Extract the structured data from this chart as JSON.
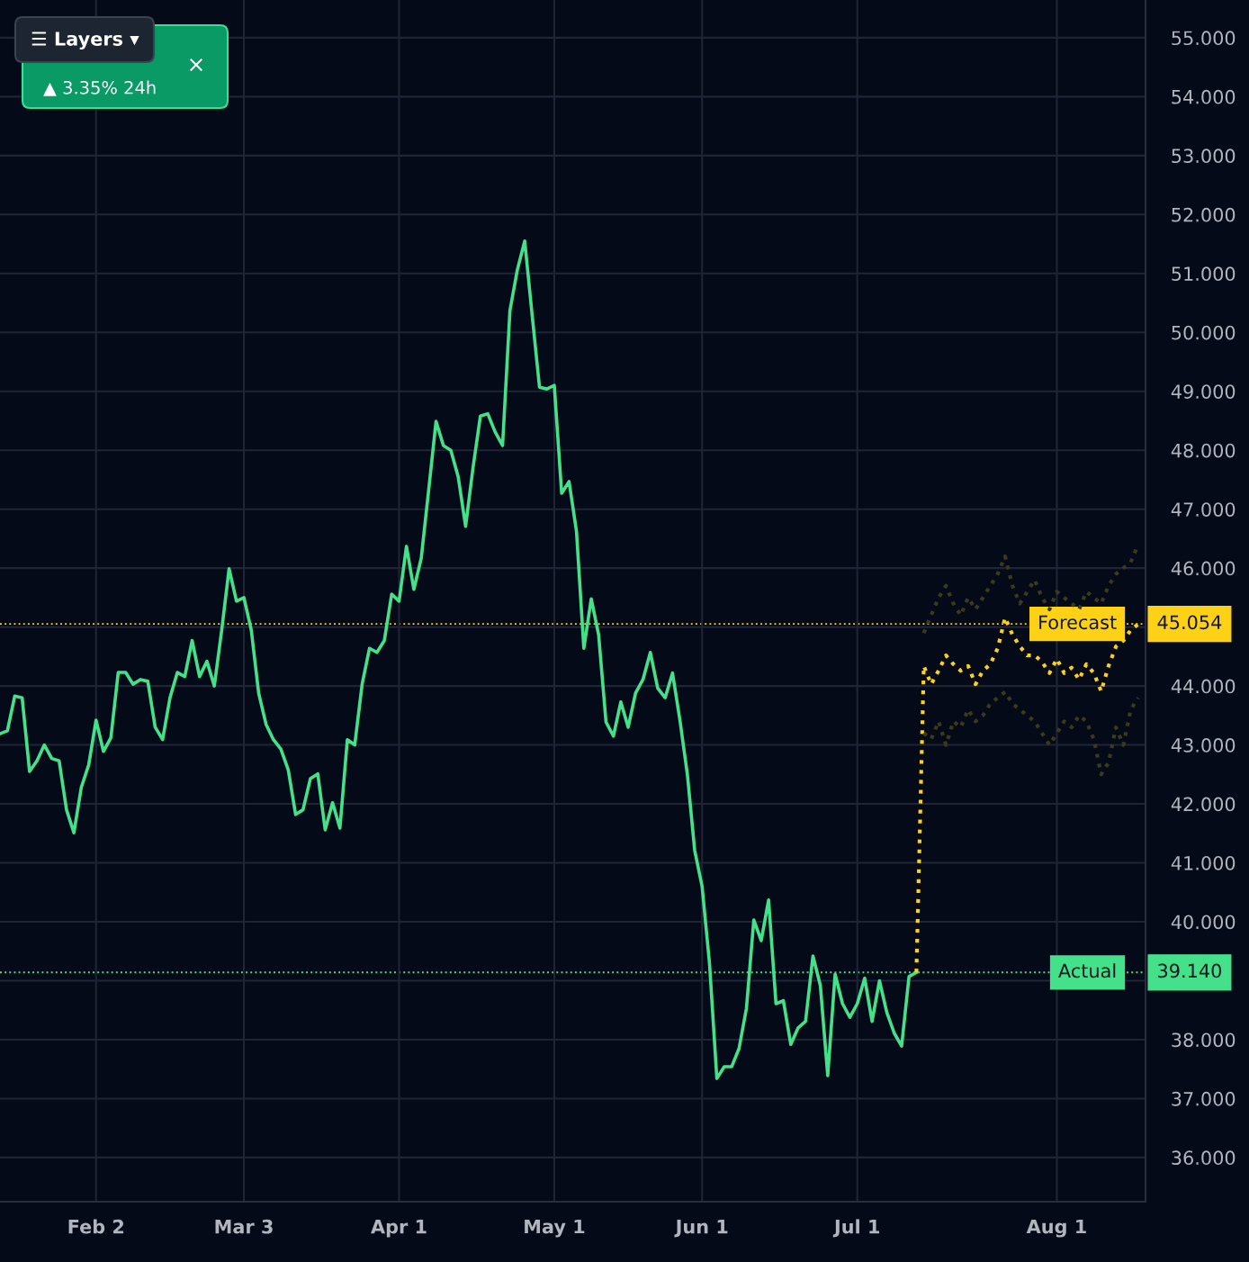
{
  "chart_data": {
    "type": "line",
    "categories": [
      null,
      null,
      null,
      null,
      null,
      null,
      null,
      null,
      null,
      null,
      null,
      null,
      null,
      "Feb 2",
      null,
      null,
      null,
      null,
      null,
      null,
      null,
      null,
      null,
      null,
      null,
      null,
      null,
      null,
      null,
      null,
      null,
      null,
      null,
      "Mar 3",
      null,
      null,
      null,
      null,
      null,
      null,
      null,
      null,
      null,
      null,
      null,
      null,
      null,
      null,
      null,
      null,
      null,
      null,
      null,
      null,
      "Apr 1",
      null,
      null,
      null,
      null,
      null,
      null,
      null,
      null,
      null,
      null,
      null,
      null,
      null,
      null,
      null,
      null,
      null,
      null,
      null,
      null,
      "May 1",
      null,
      null,
      null,
      null,
      null,
      null,
      null,
      null,
      null,
      null,
      null,
      null,
      null,
      null,
      null,
      null,
      null,
      null,
      null,
      "Jun 1",
      null,
      null,
      null,
      null,
      null,
      null,
      null,
      null,
      null,
      null,
      null,
      null,
      null,
      null,
      null,
      null,
      null,
      null,
      null,
      null,
      "Jul 1",
      null,
      null,
      null,
      null,
      null,
      null,
      null,
      null,
      null,
      null,
      null,
      null,
      null,
      null,
      null,
      null,
      null,
      null,
      null,
      null,
      null,
      null,
      null,
      null,
      null,
      null,
      "Aug 1",
      null,
      null,
      null,
      null,
      null,
      null,
      null,
      null,
      null,
      null,
      null
    ],
    "ylim": [
      35.25,
      55.64
    ],
    "yticks": [
      {
        "value": 36,
        "label": "36.000"
      },
      {
        "value": 37,
        "label": "37.000"
      },
      {
        "value": 38,
        "label": "38.000"
      },
      {
        "value": 39,
        "label": null
      },
      {
        "value": 40,
        "label": "40.000"
      },
      {
        "value": 41,
        "label": "41.000"
      },
      {
        "value": 42,
        "label": "42.000"
      },
      {
        "value": 43,
        "label": "43.000"
      },
      {
        "value": 44,
        "label": "44.000"
      },
      {
        "value": 45,
        "label": null
      },
      {
        "value": 46,
        "label": "46.000"
      },
      {
        "value": 47,
        "label": "47.000"
      },
      {
        "value": 48,
        "label": "48.000"
      },
      {
        "value": 49,
        "label": "49.000"
      },
      {
        "value": 50,
        "label": "50.000"
      },
      {
        "value": 51,
        "label": "51.000"
      },
      {
        "value": 52,
        "label": "52.000"
      },
      {
        "value": 53,
        "label": "53.000"
      },
      {
        "value": 54,
        "label": "54.000"
      },
      {
        "value": 55,
        "label": "55.000"
      }
    ],
    "grid": true,
    "marker": "none",
    "series": [
      {
        "color": "#45e08a",
        "line_style": "solid",
        "values": [
          43.19,
          43.24,
          43.83,
          43.8,
          42.55,
          42.73,
          43.0,
          42.77,
          42.73,
          41.9,
          41.51,
          42.28,
          42.66,
          43.42,
          42.89,
          43.12,
          44.23,
          44.23,
          44.03,
          44.11,
          44.08,
          43.3,
          43.09,
          43.8,
          44.23,
          44.16,
          44.77,
          44.16,
          44.42,
          44.0,
          44.95,
          45.99,
          45.44,
          45.5,
          44.95,
          43.88,
          43.35,
          43.09,
          42.93,
          42.58,
          41.82,
          41.9,
          42.43,
          42.51,
          41.56,
          42.02,
          41.59,
          43.09,
          43.0,
          44.03,
          44.64,
          44.57,
          44.77,
          45.56,
          45.44,
          46.37,
          45.64,
          46.17,
          47.32,
          48.49,
          48.08,
          48.0,
          47.55,
          46.71,
          47.7,
          48.58,
          48.62,
          48.31,
          48.08,
          50.37,
          51.06,
          51.55,
          50.3,
          49.07,
          49.04,
          49.1,
          47.27,
          47.47,
          46.63,
          44.64,
          45.48,
          44.87,
          43.39,
          43.15,
          43.73,
          43.3,
          43.88,
          44.11,
          44.57,
          43.96,
          43.8,
          44.22,
          43.42,
          42.51,
          41.21,
          40.6,
          39.3,
          37.34,
          37.54,
          37.54,
          37.85,
          38.53,
          40.03,
          39.68,
          40.37,
          38.61,
          38.66,
          37.92,
          38.2,
          38.31,
          39.42,
          38.92,
          37.39,
          39.11,
          38.61,
          38.38,
          38.61,
          39.04,
          38.31,
          39.0,
          38.46,
          38.11,
          37.89,
          39.07,
          39.14,
          null,
          null,
          null,
          null,
          null,
          null,
          null,
          null,
          null,
          null,
          null,
          null,
          null,
          null,
          null,
          null,
          null,
          null,
          null,
          null,
          null,
          null,
          null,
          null,
          null,
          null,
          null,
          null,
          null,
          null
        ]
      },
      {
        "color": "#fcd116",
        "line_style": "dotted",
        "values": [
          null,
          null,
          null,
          null,
          null,
          null,
          null,
          null,
          null,
          null,
          null,
          null,
          null,
          null,
          null,
          null,
          null,
          null,
          null,
          null,
          null,
          null,
          null,
          null,
          null,
          null,
          null,
          null,
          null,
          null,
          null,
          null,
          null,
          null,
          null,
          null,
          null,
          null,
          null,
          null,
          null,
          null,
          null,
          null,
          null,
          null,
          null,
          null,
          null,
          null,
          null,
          null,
          null,
          null,
          null,
          null,
          null,
          null,
          null,
          null,
          null,
          null,
          null,
          null,
          null,
          null,
          null,
          null,
          null,
          null,
          null,
          null,
          null,
          null,
          null,
          null,
          null,
          null,
          null,
          null,
          null,
          null,
          null,
          null,
          null,
          null,
          null,
          null,
          null,
          null,
          null,
          null,
          null,
          null,
          null,
          null,
          null,
          null,
          null,
          null,
          null,
          null,
          null,
          null,
          null,
          null,
          null,
          null,
          null,
          null,
          null,
          null,
          null,
          null,
          null,
          null,
          null,
          null,
          null,
          null,
          null,
          null,
          null,
          null,
          39.14,
          44.34,
          44.03,
          44.26,
          44.52,
          44.37,
          44.26,
          44.34,
          44.03,
          44.26,
          44.37,
          44.64,
          45.16,
          44.87,
          44.67,
          44.52,
          44.52,
          44.41,
          44.22,
          44.46,
          44.22,
          44.31,
          44.11,
          44.37,
          44.22,
          43.91,
          44.34,
          44.67,
          44.77,
          44.95,
          45.05
        ]
      },
      {
        "color": "#3a3a1c",
        "line_style": "dotted",
        "values": [
          null,
          null,
          null,
          null,
          null,
          null,
          null,
          null,
          null,
          null,
          null,
          null,
          null,
          null,
          null,
          null,
          null,
          null,
          null,
          null,
          null,
          null,
          null,
          null,
          null,
          null,
          null,
          null,
          null,
          null,
          null,
          null,
          null,
          null,
          null,
          null,
          null,
          null,
          null,
          null,
          null,
          null,
          null,
          null,
          null,
          null,
          null,
          null,
          null,
          null,
          null,
          null,
          null,
          null,
          null,
          null,
          null,
          null,
          null,
          null,
          null,
          null,
          null,
          null,
          null,
          null,
          null,
          null,
          null,
          null,
          null,
          null,
          null,
          null,
          null,
          null,
          null,
          null,
          null,
          null,
          null,
          null,
          null,
          null,
          null,
          null,
          null,
          null,
          null,
          null,
          null,
          null,
          null,
          null,
          null,
          null,
          null,
          null,
          null,
          null,
          null,
          null,
          null,
          null,
          null,
          null,
          null,
          null,
          null,
          null,
          null,
          null,
          null,
          null,
          null,
          null,
          null,
          null,
          null,
          null,
          null,
          null,
          null,
          null,
          null,
          43.2,
          43.1,
          43.4,
          43.0,
          43.4,
          43.3,
          43.6,
          43.4,
          43.5,
          43.7,
          43.8,
          43.9,
          43.7,
          43.6,
          43.5,
          43.4,
          43.2,
          43.0,
          43.2,
          43.4,
          43.3,
          43.5,
          43.4,
          43.1,
          42.5,
          42.7,
          43.3,
          43.0,
          43.6,
          43.8
        ]
      },
      {
        "color": "#3a3a1c",
        "line_style": "dotted",
        "values": [
          null,
          null,
          null,
          null,
          null,
          null,
          null,
          null,
          null,
          null,
          null,
          null,
          null,
          null,
          null,
          null,
          null,
          null,
          null,
          null,
          null,
          null,
          null,
          null,
          null,
          null,
          null,
          null,
          null,
          null,
          null,
          null,
          null,
          null,
          null,
          null,
          null,
          null,
          null,
          null,
          null,
          null,
          null,
          null,
          null,
          null,
          null,
          null,
          null,
          null,
          null,
          null,
          null,
          null,
          null,
          null,
          null,
          null,
          null,
          null,
          null,
          null,
          null,
          null,
          null,
          null,
          null,
          null,
          null,
          null,
          null,
          null,
          null,
          null,
          null,
          null,
          null,
          null,
          null,
          null,
          null,
          null,
          null,
          null,
          null,
          null,
          null,
          null,
          null,
          null,
          null,
          null,
          null,
          null,
          null,
          null,
          null,
          null,
          null,
          null,
          null,
          null,
          null,
          null,
          null,
          null,
          null,
          null,
          null,
          null,
          null,
          null,
          null,
          null,
          null,
          null,
          null,
          null,
          null,
          null,
          null,
          null,
          null,
          null,
          null,
          44.9,
          45.2,
          45.5,
          45.7,
          45.4,
          45.2,
          45.5,
          45.3,
          45.5,
          45.7,
          45.9,
          46.2,
          45.7,
          45.4,
          45.6,
          45.8,
          45.5,
          45.3,
          45.6,
          45.5,
          45.4,
          45.3,
          45.6,
          45.5,
          45.4,
          45.7,
          45.9,
          46.0,
          46.1,
          46.4
        ]
      }
    ],
    "ref_lines": [
      {
        "axis": "y",
        "value": 45.054,
        "label": "Forecast",
        "color": "#fcd116",
        "line_style": "dotted"
      },
      {
        "axis": "y",
        "value": 39.14,
        "label": "Actual",
        "color": "#45e08a",
        "line_style": "dotted"
      }
    ],
    "annotations": [
      "☰ Layers ▾",
      "▲ 3.35% 24h",
      "×",
      "45.054",
      "39.140"
    ]
  }
}
